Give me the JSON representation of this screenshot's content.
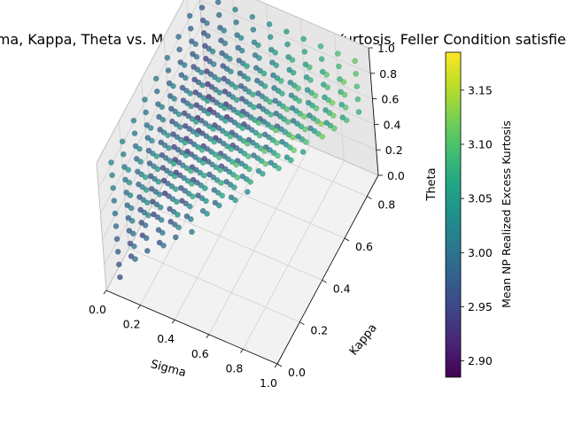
{
  "chart_data": {
    "type": "scatter",
    "projection": "3d",
    "title": "Sigma, Kappa, Theta vs. Mean NP Realized Excess Kurtosis. Feller Condition satisfied",
    "xlabel": "Sigma",
    "ylabel": "Kappa",
    "zlabel": "Theta",
    "xlim": [
      0.0,
      1.0
    ],
    "ylim": [
      0.0,
      0.9
    ],
    "zlim": [
      0.0,
      1.0
    ],
    "xticks": [
      "0.0",
      "0.2",
      "0.4",
      "0.6",
      "0.8",
      "1.0"
    ],
    "yticks": [
      "0.0",
      "0.2",
      "0.4",
      "0.6",
      "0.8"
    ],
    "zticks": [
      "0.0",
      "0.2",
      "0.4",
      "0.6",
      "0.8",
      "1.0"
    ],
    "grid": true,
    "colormap": "viridis",
    "colorbar": {
      "label": "Mean NP Realized Excess Kurtosis",
      "range": [
        2.885,
        3.185
      ],
      "ticks": [
        "2.90",
        "2.95",
        "3.00",
        "3.05",
        "3.10",
        "3.15"
      ]
    },
    "points": {
      "sigma": [
        0.05,
        0.15,
        0.25,
        0.35,
        0.45,
        0.55,
        0.65,
        0.75,
        0.85,
        0.95
      ],
      "kappa": [
        0.05,
        0.15,
        0.25,
        0.35,
        0.45,
        0.55,
        0.65,
        0.75,
        0.85
      ],
      "theta": [
        0.05,
        0.15,
        0.25,
        0.35,
        0.45,
        0.55,
        0.65,
        0.75,
        0.85,
        0.95
      ],
      "rule": "shown only where 2*kappa*theta >= sigma^2 (Feller condition)",
      "value_range": [
        2.89,
        3.18
      ]
    }
  }
}
